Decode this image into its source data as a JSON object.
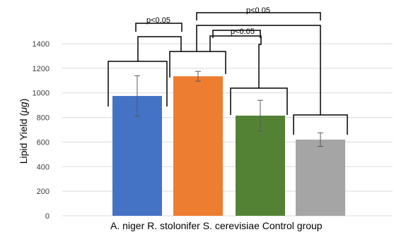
{
  "chart_data": {
    "type": "bar",
    "ylabel": "Lipid Yield (μg)",
    "ylabel_parts": [
      "Lipid Yield (",
      "μg",
      ")"
    ],
    "ylim": [
      0,
      1400
    ],
    "yticks": [
      0,
      200,
      400,
      600,
      800,
      1000,
      1200,
      1400
    ],
    "grid": true,
    "categories": [
      "A. niger",
      "R. stolonifer",
      "S. cerevisiae",
      "Control group"
    ],
    "category_text": "A. niger R. stolonifer S. cerevisiae Control group",
    "values": [
      975,
      1135,
      815,
      620
    ],
    "errors": [
      165,
      40,
      125,
      55
    ],
    "colors": [
      "#4472C4",
      "#ED7D31",
      "#548235",
      "#A5A5A5"
    ],
    "annotations": [
      {
        "text": "p<0.05",
        "from": "A. niger",
        "to": "R. stolonifer"
      },
      {
        "text": "p<0.05",
        "from": "R. stolonifer",
        "to": "S. cerevisiae"
      },
      {
        "text": "p<0.05",
        "from": "R. stolonifer",
        "to": "Control group"
      }
    ]
  }
}
